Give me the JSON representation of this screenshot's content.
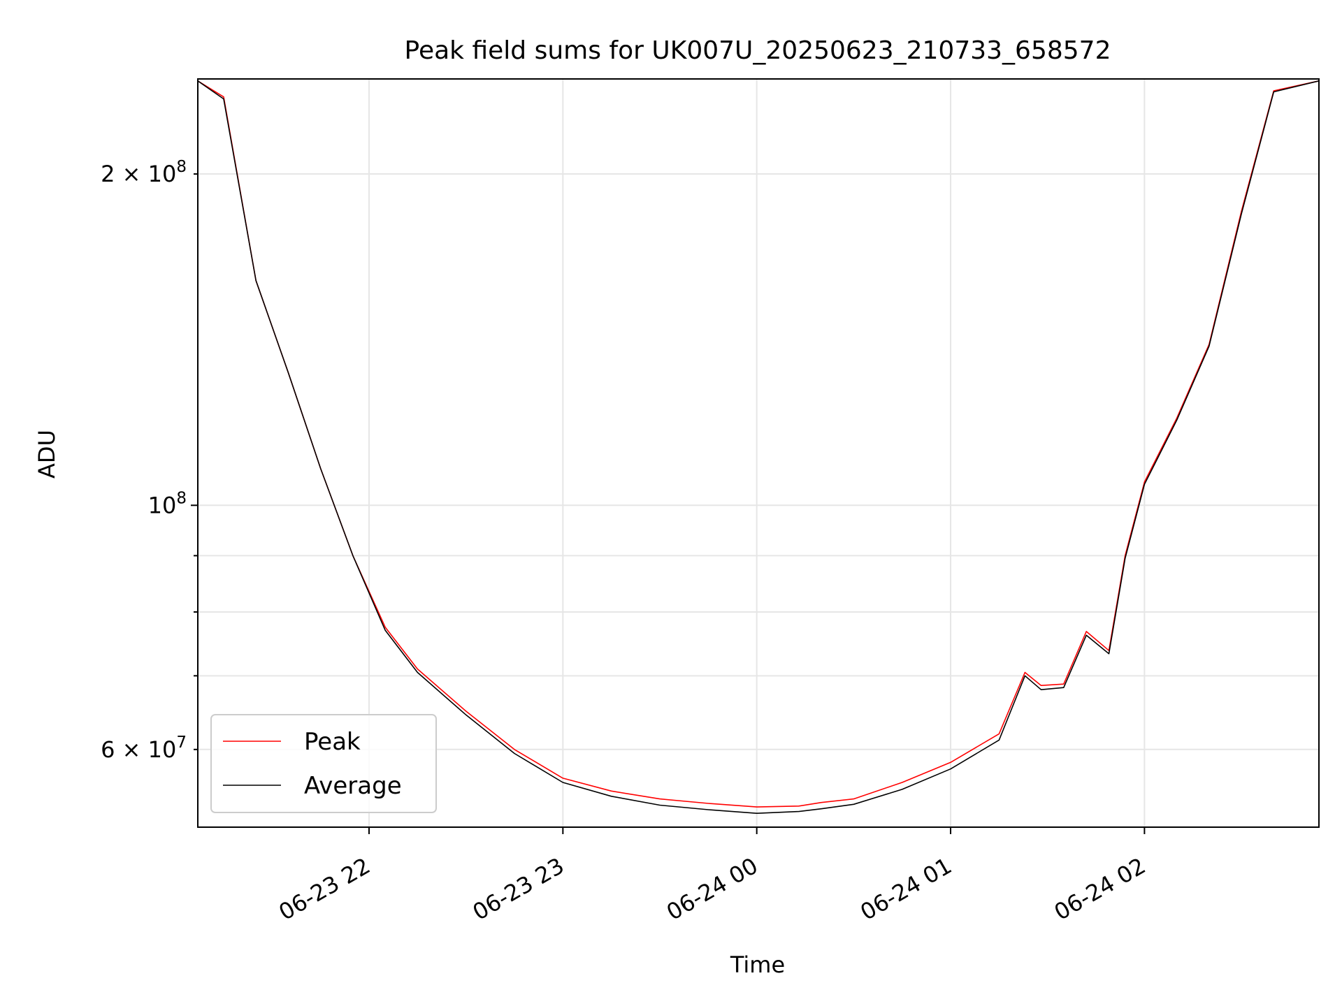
{
  "chart_data": {
    "type": "line",
    "title": "Peak field sums for UK007U_20250623_210733_658572",
    "xlabel": "Time",
    "ylabel": "ADU",
    "y_scale": "log",
    "ylim": [
      51000000,
      244000000
    ],
    "xlim": [
      "2025-06-23 21:07",
      "2025-06-24 02:54"
    ],
    "x_ticks": [
      {
        "value": "2025-06-23 22:00",
        "label": "06-23 22"
      },
      {
        "value": "2025-06-23 23:00",
        "label": "06-23 23"
      },
      {
        "value": "2025-06-24 00:00",
        "label": "06-24 00"
      },
      {
        "value": "2025-06-24 01:00",
        "label": "06-24 01"
      },
      {
        "value": "2025-06-24 02:00",
        "label": "06-24 02"
      }
    ],
    "y_ticks_major": [
      {
        "value": 100000000,
        "base": "10",
        "exp": "8"
      }
    ],
    "y_ticks_labeled_minor": [
      {
        "value": 200000000,
        "mant": "2",
        "base": "10",
        "exp": "8"
      },
      {
        "value": 60000000,
        "mant": "6",
        "base": "10",
        "exp": "7"
      }
    ],
    "y_ticks_minor": [
      70000000,
      80000000,
      90000000
    ],
    "grid": true,
    "legend_position": "lower-left",
    "x": [
      "2025-06-23 21:07",
      "2025-06-23 21:15",
      "2025-06-23 21:25",
      "2025-06-23 21:35",
      "2025-06-23 21:45",
      "2025-06-23 21:55",
      "2025-06-23 22:05",
      "2025-06-23 22:15",
      "2025-06-23 22:30",
      "2025-06-23 22:45",
      "2025-06-23 23:00",
      "2025-06-23 23:15",
      "2025-06-23 23:30",
      "2025-06-23 23:45",
      "2025-06-24 00:00",
      "2025-06-24 00:13",
      "2025-06-24 00:20",
      "2025-06-24 00:30",
      "2025-06-24 00:45",
      "2025-06-24 01:00",
      "2025-06-24 01:15",
      "2025-06-24 01:23",
      "2025-06-24 01:28",
      "2025-06-24 01:35",
      "2025-06-24 01:42",
      "2025-06-24 01:49",
      "2025-06-24 01:54",
      "2025-06-24 02:00",
      "2025-06-24 02:10",
      "2025-06-24 02:20",
      "2025-06-24 02:30",
      "2025-06-24 02:40",
      "2025-06-24 02:54"
    ],
    "series": [
      {
        "name": "Peak",
        "color": "#ff0000",
        "values": [
          243000000,
          235000000,
          160000000,
          132000000,
          108000000,
          90000000,
          77500000,
          71000000,
          65000000,
          60000000,
          56500000,
          55000000,
          54100000,
          53600000,
          53200000,
          53300000,
          53700000,
          54100000,
          56000000,
          58400000,
          62000000,
          70500000,
          68600000,
          68800000,
          76800000,
          73800000,
          90000000,
          105000000,
          120000000,
          140000000,
          185000000,
          238000000,
          243000000
        ]
      },
      {
        "name": "Average",
        "color": "#000000",
        "values": [
          243000000,
          234000000,
          160000000,
          132000000,
          108000000,
          90000000,
          77000000,
          70500000,
          64500000,
          59500000,
          56000000,
          54400000,
          53400000,
          52900000,
          52500000,
          52700000,
          53000000,
          53500000,
          55200000,
          57600000,
          61200000,
          70000000,
          68000000,
          68300000,
          76200000,
          73300000,
          89500000,
          104500000,
          119500000,
          139500000,
          184000000,
          237500000,
          243000000
        ]
      }
    ]
  }
}
